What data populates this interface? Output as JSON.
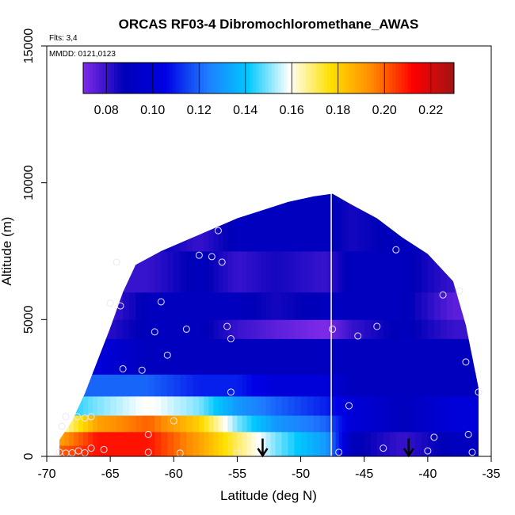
{
  "chart_data": {
    "type": "heatmap",
    "title": "ORCAS RF03-4 Dibromochloromethane_AWAS",
    "flights_note": "Flts: 3,4",
    "date_note": "MMDD: 0121,0123",
    "xlabel": "Latitude (deg N)",
    "ylabel": "Altitude (m)",
    "xlim": [
      -70,
      -35
    ],
    "ylim": [
      0,
      15000
    ],
    "x_ticks": [
      -70,
      -65,
      -60,
      -55,
      -50,
      -45,
      -40,
      -35
    ],
    "y_ticks": [
      0,
      5000,
      10000,
      15000
    ],
    "colorbar": {
      "min": 0.07,
      "max": 0.23,
      "ticks": [
        0.08,
        0.1,
        0.12,
        0.14,
        0.16,
        0.18,
        0.2,
        0.22
      ],
      "tick_labels": [
        "0.08",
        "0.10",
        "0.12",
        "0.14",
        "0.16",
        "0.18",
        "0.20",
        "0.22"
      ],
      "colors": [
        "#7f2be8",
        "#0000b8",
        "#0000e6",
        "#1e7cff",
        "#00c8ff",
        "#ffffff",
        "#ffe000",
        "#ff8c00",
        "#ff0000",
        "#a01414"
      ]
    },
    "envelope_top": [
      [
        -69,
        600
      ],
      [
        -68,
        1300
      ],
      [
        -67,
        2300
      ],
      [
        -66,
        3500
      ],
      [
        -65,
        4700
      ],
      [
        -64,
        6000
      ],
      [
        -63,
        7000
      ],
      [
        -61,
        7500
      ],
      [
        -59,
        7900
      ],
      [
        -57,
        8300
      ],
      [
        -55,
        8700
      ],
      [
        -53,
        9000
      ],
      [
        -51,
        9300
      ],
      [
        -49,
        9500
      ],
      [
        -47.5,
        9600
      ],
      [
        -46,
        9200
      ],
      [
        -44,
        8700
      ],
      [
        -42,
        8000
      ],
      [
        -40,
        7400
      ],
      [
        -38,
        6400
      ],
      [
        -37,
        4800
      ],
      [
        -36,
        2500
      ],
      [
        -36,
        0
      ]
    ],
    "field_bands": [
      {
        "alt_min": 0,
        "alt_max": 400,
        "segments": [
          [
            -69,
            0.2
          ],
          [
            -66,
            0.21
          ],
          [
            -62,
            0.21
          ],
          [
            -58,
            0.19
          ],
          [
            -55,
            0.17
          ],
          [
            -52,
            0.15
          ],
          [
            -48,
            0.13
          ],
          [
            -46,
            0.09
          ],
          [
            -42,
            0.08
          ],
          [
            -38,
            0.09
          ],
          [
            -36,
            0.09
          ]
        ]
      },
      {
        "alt_min": 400,
        "alt_max": 900,
        "segments": [
          [
            -69,
            0.19
          ],
          [
            -66,
            0.21
          ],
          [
            -62,
            0.21
          ],
          [
            -58,
            0.19
          ],
          [
            -55,
            0.17
          ],
          [
            -52,
            0.15
          ],
          [
            -48,
            0.13
          ],
          [
            -46,
            0.09
          ],
          [
            -42,
            0.08
          ],
          [
            -38,
            0.09
          ],
          [
            -36,
            0.09
          ]
        ]
      },
      {
        "alt_min": 900,
        "alt_max": 1500,
        "segments": [
          [
            -69,
            0.16
          ],
          [
            -66,
            0.19
          ],
          [
            -62,
            0.2
          ],
          [
            -58,
            0.18
          ],
          [
            -55,
            0.15
          ],
          [
            -52,
            0.13
          ],
          [
            -48,
            0.12
          ],
          [
            -46,
            0.1
          ],
          [
            -42,
            0.09
          ],
          [
            -38,
            0.1
          ],
          [
            -36,
            0.1
          ]
        ]
      },
      {
        "alt_min": 1500,
        "alt_max": 2200,
        "segments": [
          [
            -69,
            0.14
          ],
          [
            -66,
            0.15
          ],
          [
            -62,
            0.16
          ],
          [
            -58,
            0.15
          ],
          [
            -55,
            0.13
          ],
          [
            -52,
            0.12
          ],
          [
            -48,
            0.11
          ],
          [
            -46,
            0.1
          ],
          [
            -42,
            0.09
          ],
          [
            -38,
            0.1
          ],
          [
            -36,
            0.1
          ]
        ]
      },
      {
        "alt_min": 2200,
        "alt_max": 3000,
        "segments": [
          [
            -69,
            0.12
          ],
          [
            -66,
            0.12
          ],
          [
            -62,
            0.12
          ],
          [
            -58,
            0.11
          ],
          [
            -55,
            0.11
          ],
          [
            -52,
            0.1
          ],
          [
            -48,
            0.1
          ],
          [
            -46,
            0.09
          ],
          [
            -42,
            0.09
          ],
          [
            -38,
            0.09
          ],
          [
            -36,
            0.09
          ]
        ]
      },
      {
        "alt_min": 3000,
        "alt_max": 4300,
        "segments": [
          [
            -69,
            0.11
          ],
          [
            -66,
            0.1
          ],
          [
            -62,
            0.09
          ],
          [
            -58,
            0.09
          ],
          [
            -55,
            0.09
          ],
          [
            -52,
            0.09
          ],
          [
            -48,
            0.09
          ],
          [
            -46,
            0.09
          ],
          [
            -42,
            0.09
          ],
          [
            -38,
            0.09
          ],
          [
            -36,
            0.09
          ]
        ]
      },
      {
        "alt_min": 4300,
        "alt_max": 5000,
        "segments": [
          [
            -69,
            0.09
          ],
          [
            -66,
            0.08
          ],
          [
            -62,
            0.09
          ],
          [
            -58,
            0.09
          ],
          [
            -55,
            0.08
          ],
          [
            -52,
            0.075
          ],
          [
            -48,
            0.07
          ],
          [
            -46,
            0.08
          ],
          [
            -42,
            0.09
          ],
          [
            -38,
            0.08
          ],
          [
            -36,
            0.08
          ]
        ]
      },
      {
        "alt_min": 5000,
        "alt_max": 6000,
        "segments": [
          [
            -69,
            0.08
          ],
          [
            -66,
            0.075
          ],
          [
            -62,
            0.09
          ],
          [
            -58,
            0.09
          ],
          [
            -55,
            0.09
          ],
          [
            -52,
            0.085
          ],
          [
            -48,
            0.09
          ],
          [
            -46,
            0.09
          ],
          [
            -42,
            0.09
          ],
          [
            -38,
            0.075
          ],
          [
            -36,
            0.075
          ]
        ]
      },
      {
        "alt_min": 6000,
        "alt_max": 7500,
        "segments": [
          [
            -69,
            0.08
          ],
          [
            -66,
            0.08
          ],
          [
            -62,
            0.08
          ],
          [
            -58,
            0.09
          ],
          [
            -55,
            0.08
          ],
          [
            -52,
            0.085
          ],
          [
            -48,
            0.08
          ],
          [
            -46,
            0.09
          ],
          [
            -42,
            0.09
          ],
          [
            -38,
            0.08
          ],
          [
            -36,
            0.08
          ]
        ]
      },
      {
        "alt_min": 7500,
        "alt_max": 10000,
        "segments": [
          [
            -69,
            0.09
          ],
          [
            -66,
            0.09
          ],
          [
            -62,
            0.09
          ],
          [
            -58,
            0.08
          ],
          [
            -55,
            0.09
          ],
          [
            -52,
            0.09
          ],
          [
            -48,
            0.09
          ],
          [
            -46,
            0.085
          ],
          [
            -42,
            0.09
          ],
          [
            -38,
            0.09
          ],
          [
            -36,
            0.09
          ]
        ]
      }
    ],
    "divider_latitude": -47.6,
    "sample_points": [
      [
        -69,
        150
      ],
      [
        -68.5,
        120
      ],
      [
        -68,
        130
      ],
      [
        -67.5,
        200
      ],
      [
        -67,
        130
      ],
      [
        -66.5,
        300
      ],
      [
        -65.5,
        250
      ],
      [
        -62,
        150
      ],
      [
        -59.5,
        120
      ],
      [
        -55,
        120
      ],
      [
        -47,
        150
      ],
      [
        -43.5,
        300
      ],
      [
        -40,
        200
      ],
      [
        -36.5,
        150
      ],
      [
        -68.8,
        1100
      ],
      [
        -68.5,
        1450
      ],
      [
        -67.6,
        1450
      ],
      [
        -67,
        1400
      ],
      [
        -66.5,
        1450
      ],
      [
        -62,
        800
      ],
      [
        -60,
        1300
      ],
      [
        -55.5,
        2350
      ],
      [
        -46.2,
        1850
      ],
      [
        -39.5,
        700
      ],
      [
        -36.8,
        800
      ],
      [
        -36,
        2350
      ],
      [
        -64,
        3200
      ],
      [
        -62.5,
        3150
      ],
      [
        -60.5,
        3700
      ],
      [
        -55.5,
        4300
      ],
      [
        -55.8,
        4750
      ],
      [
        -59,
        4650
      ],
      [
        -61.5,
        4550
      ],
      [
        -47.5,
        4650
      ],
      [
        -45.5,
        4400
      ],
      [
        -44,
        4750
      ],
      [
        -37,
        3450
      ],
      [
        -65,
        5600
      ],
      [
        -64.2,
        5500
      ],
      [
        -61,
        5650
      ],
      [
        -64.5,
        7100
      ],
      [
        -58,
        7350
      ],
      [
        -57,
        7300
      ],
      [
        -56.2,
        7100
      ],
      [
        -56.5,
        8250
      ],
      [
        -42.5,
        7550
      ],
      [
        -38.8,
        5900
      ],
      [
        -37.5,
        6050
      ]
    ],
    "arrows": [
      -53,
      -41.5
    ]
  }
}
